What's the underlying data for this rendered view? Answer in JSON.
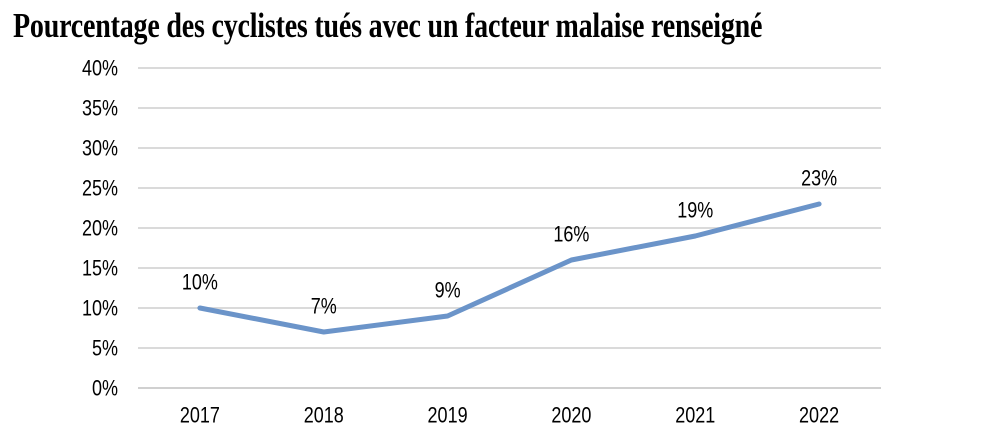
{
  "title": "Pourcentage des cyclistes tués avec un facteur malaise renseigné",
  "chart_data": {
    "type": "line",
    "title": "Pourcentage des cyclistes tués avec un facteur malaise renseigné",
    "categories": [
      "2017",
      "2018",
      "2019",
      "2020",
      "2021",
      "2022"
    ],
    "values": [
      10,
      7,
      9,
      16,
      19,
      23
    ],
    "data_labels": [
      "10%",
      "7%",
      "9%",
      "16%",
      "19%",
      "23%"
    ],
    "xlabel": "",
    "ylabel": "",
    "ylim": [
      0,
      40
    ],
    "ytick_step": 5,
    "ytick_labels": [
      "0%",
      "5%",
      "10%",
      "15%",
      "20%",
      "25%",
      "30%",
      "35%",
      "40%"
    ],
    "grid": true,
    "legend": "none",
    "colors": {
      "line": "#6b94c9",
      "gridline": "#dadada",
      "axis": "#d0d0d0",
      "text": "#000000",
      "background": "#ffffff"
    }
  }
}
